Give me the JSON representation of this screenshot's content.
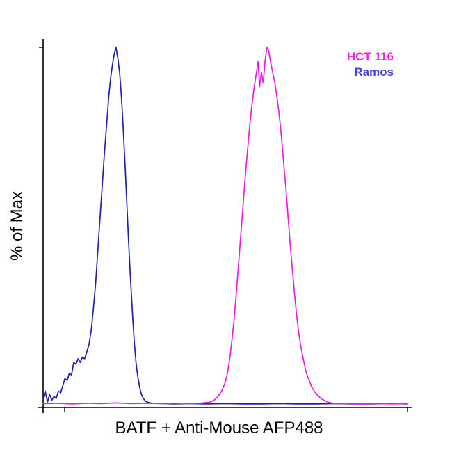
{
  "figure": {
    "xlabel": "BATF + Anti-Mouse AFP488",
    "ylabel": "% of Max",
    "legend": [
      {
        "label": "HCT 116",
        "color": "#EE22DD"
      },
      {
        "label": "Ramos",
        "color": "#4444D4"
      }
    ]
  },
  "chart_data": {
    "type": "line",
    "subtype": "flow-cytometry-histogram-overlay",
    "title": "",
    "xlabel": "BATF + Anti-Mouse AFP488",
    "ylabel": "% of Max",
    "x_axis": {
      "scale": "log-fluorescence-unlabeled",
      "range_percent": [
        0,
        100
      ],
      "tick_labels": []
    },
    "y_axis": {
      "units": "% of Max",
      "range": [
        0,
        100
      ],
      "tick_labels": []
    },
    "legend_position": "top-right",
    "grid": false,
    "series": [
      {
        "name": "Ramos",
        "color": "#2020AC",
        "peak_x_percent": 20,
        "peak_y_percent_of_max": 100,
        "points": [
          [
            0,
            2
          ],
          [
            0.6,
            4
          ],
          [
            1.2,
            1
          ],
          [
            1.8,
            3
          ],
          [
            2.4,
            1.5
          ],
          [
            3,
            2.5
          ],
          [
            3.6,
            2
          ],
          [
            4.2,
            4
          ],
          [
            4.8,
            3.5
          ],
          [
            5.4,
            5.5
          ],
          [
            6,
            7.5
          ],
          [
            6.6,
            7
          ],
          [
            7.2,
            9
          ],
          [
            7.8,
            8.5
          ],
          [
            8.4,
            12
          ],
          [
            9,
            11.5
          ],
          [
            9.6,
            13
          ],
          [
            10.2,
            12
          ],
          [
            10.8,
            13.5
          ],
          [
            11.4,
            13
          ],
          [
            12,
            15
          ],
          [
            12.6,
            17
          ],
          [
            13.2,
            21
          ],
          [
            13.8,
            27
          ],
          [
            14.4,
            34
          ],
          [
            15,
            43
          ],
          [
            15.6,
            52
          ],
          [
            16.2,
            61
          ],
          [
            16.8,
            70
          ],
          [
            17.4,
            78
          ],
          [
            18,
            86
          ],
          [
            18.5,
            91
          ],
          [
            19,
            95
          ],
          [
            19.5,
            98
          ],
          [
            20,
            100
          ],
          [
            20.5,
            97
          ],
          [
            21,
            93
          ],
          [
            21.5,
            86
          ],
          [
            22,
            77
          ],
          [
            22.5,
            67
          ],
          [
            23,
            56
          ],
          [
            23.5,
            45
          ],
          [
            24,
            35
          ],
          [
            24.5,
            26
          ],
          [
            25,
            18
          ],
          [
            25.5,
            12
          ],
          [
            26,
            8
          ],
          [
            26.5,
            5
          ],
          [
            27,
            3
          ],
          [
            27.5,
            2
          ],
          [
            28,
            1.2
          ],
          [
            29,
            0.8
          ],
          [
            30,
            0.6
          ],
          [
            33,
            0.5
          ],
          [
            36,
            0.4
          ],
          [
            40,
            0.5
          ],
          [
            45,
            0.4
          ],
          [
            50,
            0.5
          ],
          [
            55,
            0.4
          ],
          [
            60,
            0.4
          ],
          [
            65,
            0.5
          ],
          [
            70,
            0.4
          ],
          [
            75,
            0.4
          ],
          [
            80,
            0.5
          ],
          [
            85,
            0.4
          ],
          [
            90,
            0.4
          ],
          [
            95,
            0.5
          ],
          [
            100,
            0.4
          ]
        ]
      },
      {
        "name": "HCT 116",
        "color": "#E620DC",
        "peak_x_percent": 61.4,
        "peak_y_percent_of_max": 100,
        "points": [
          [
            0,
            0.5
          ],
          [
            4,
            0.6
          ],
          [
            8,
            0.4
          ],
          [
            12,
            0.6
          ],
          [
            16,
            0.5
          ],
          [
            20,
            0.7
          ],
          [
            24,
            0.5
          ],
          [
            28,
            0.6
          ],
          [
            32,
            0.5
          ],
          [
            36,
            0.6
          ],
          [
            40,
            0.5
          ],
          [
            43,
            0.6
          ],
          [
            45,
            0.8
          ],
          [
            46,
            1
          ],
          [
            47,
            1.5
          ],
          [
            48,
            2.5
          ],
          [
            49,
            4
          ],
          [
            50,
            6.5
          ],
          [
            50.6,
            9
          ],
          [
            51.2,
            13
          ],
          [
            51.8,
            18
          ],
          [
            52.4,
            24
          ],
          [
            53,
            31
          ],
          [
            53.6,
            39
          ],
          [
            54.2,
            47
          ],
          [
            54.8,
            55
          ],
          [
            55.4,
            63
          ],
          [
            56,
            70
          ],
          [
            56.6,
            77
          ],
          [
            57.2,
            83
          ],
          [
            57.8,
            88
          ],
          [
            58.4,
            92
          ],
          [
            59,
            96
          ],
          [
            59.4,
            89
          ],
          [
            59.9,
            93
          ],
          [
            60.4,
            90
          ],
          [
            60.9,
            96
          ],
          [
            61.4,
            100
          ],
          [
            61.9,
            99
          ],
          [
            62.4,
            96
          ],
          [
            63,
            93
          ],
          [
            63.6,
            90
          ],
          [
            64.2,
            86
          ],
          [
            64.8,
            81
          ],
          [
            65.4,
            75
          ],
          [
            66,
            68
          ],
          [
            66.6,
            61
          ],
          [
            67.2,
            53
          ],
          [
            67.8,
            45
          ],
          [
            68.4,
            38
          ],
          [
            69,
            31
          ],
          [
            69.6,
            25
          ],
          [
            70.2,
            20
          ],
          [
            70.8,
            16
          ],
          [
            71.4,
            13
          ],
          [
            72,
            10
          ],
          [
            72.6,
            8
          ],
          [
            73.2,
            6.5
          ],
          [
            73.8,
            5
          ],
          [
            74.4,
            4
          ],
          [
            75,
            3.2
          ],
          [
            75.6,
            2.6
          ],
          [
            76.2,
            2
          ],
          [
            77,
            1.5
          ],
          [
            78,
            1
          ],
          [
            79,
            0.7
          ],
          [
            80,
            0.5
          ],
          [
            84,
            0.5
          ],
          [
            88,
            0.4
          ],
          [
            92,
            0.5
          ],
          [
            96,
            0.4
          ],
          [
            100,
            0.5
          ]
        ]
      }
    ]
  }
}
